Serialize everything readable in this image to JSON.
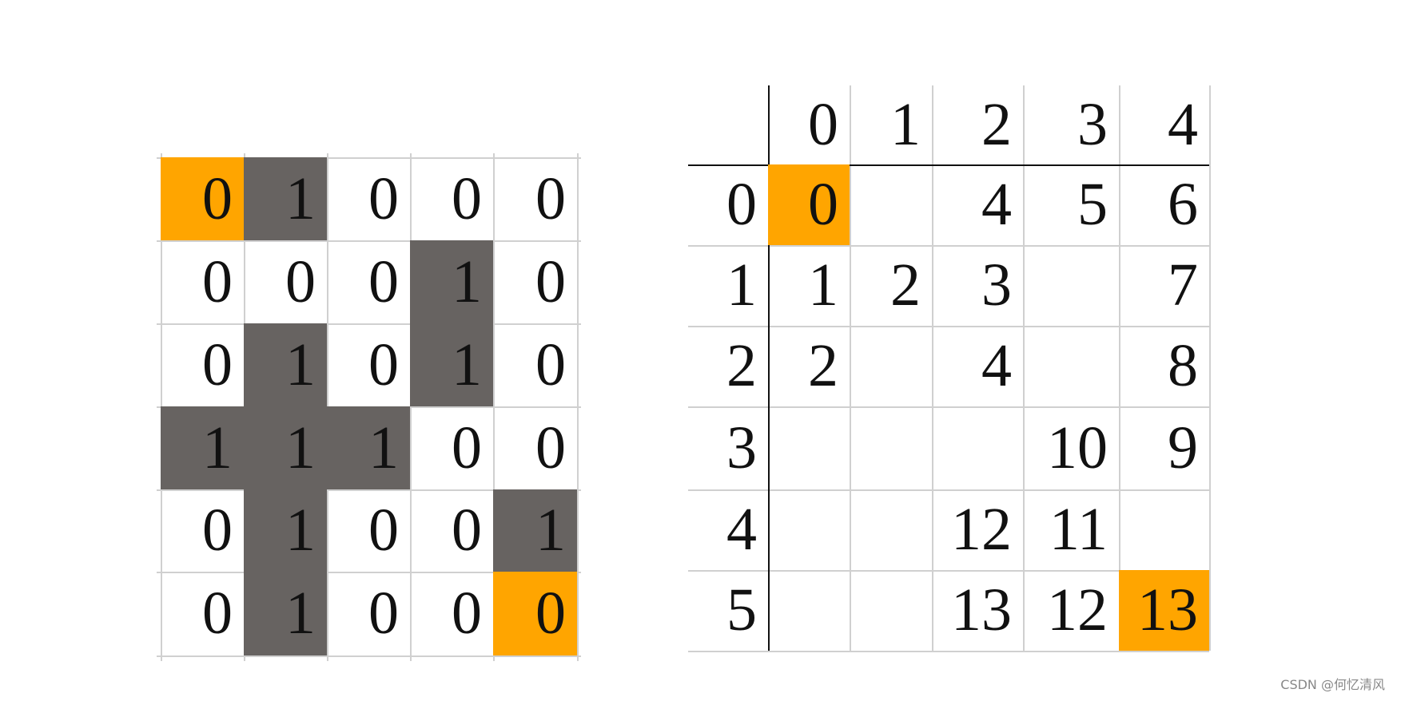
{
  "colors": {
    "wall": "#676361",
    "endpoint": "#FFA500",
    "grid_line": "#d0d0d0"
  },
  "maze": {
    "rows": [
      [
        "0",
        "1",
        "0",
        "0",
        "0"
      ],
      [
        "0",
        "0",
        "0",
        "1",
        "0"
      ],
      [
        "0",
        "1",
        "0",
        "1",
        "0"
      ],
      [
        "1",
        "1",
        "1",
        "0",
        "0"
      ],
      [
        "0",
        "1",
        "0",
        "0",
        "1"
      ],
      [
        "0",
        "1",
        "0",
        "0",
        "0"
      ]
    ],
    "highlighted": [
      [
        0,
        0
      ],
      [
        5,
        4
      ]
    ]
  },
  "distance_table": {
    "col_headers": [
      "0",
      "1",
      "2",
      "3",
      "4"
    ],
    "row_headers": [
      "0",
      "1",
      "2",
      "3",
      "4",
      "5"
    ],
    "rows": [
      [
        "0",
        "",
        "4",
        "5",
        "6"
      ],
      [
        "1",
        "2",
        "3",
        "",
        "7"
      ],
      [
        "2",
        "",
        "4",
        "",
        "8"
      ],
      [
        "",
        "",
        "",
        "10",
        "9"
      ],
      [
        "",
        "",
        "12",
        "11",
        ""
      ],
      [
        "",
        "",
        "13",
        "12",
        "13"
      ]
    ],
    "highlighted": [
      [
        0,
        0
      ],
      [
        5,
        4
      ]
    ]
  },
  "watermark": "CSDN @何忆清风"
}
